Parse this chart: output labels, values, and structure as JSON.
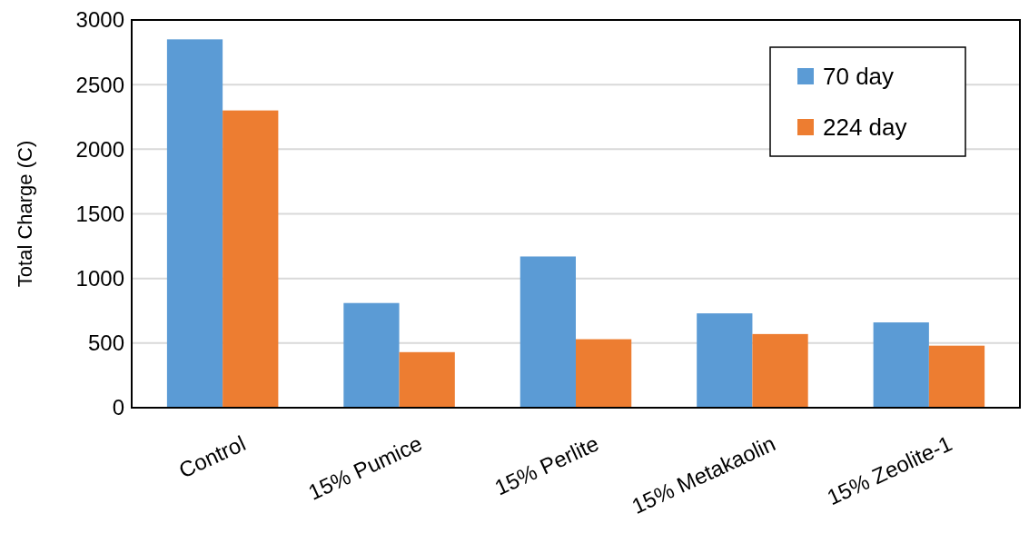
{
  "chart_data": {
    "type": "bar",
    "ylabel": "Total Charge (C)",
    "categories": [
      "Control",
      "15% Pumice",
      "15% Perlite",
      "15% Metakaolin",
      "15% Zeolite-1"
    ],
    "series": [
      {
        "name": "70 day",
        "color": "#5b9bd5",
        "values": [
          2850,
          810,
          1170,
          730,
          660
        ]
      },
      {
        "name": "224 day",
        "color": "#ed7d31",
        "values": [
          2300,
          430,
          530,
          570,
          480
        ]
      }
    ],
    "ylim": [
      0,
      3000
    ],
    "yticks": [
      0,
      500,
      1000,
      1500,
      2000,
      2500,
      3000
    ],
    "grid": "y",
    "legend": "top right"
  }
}
